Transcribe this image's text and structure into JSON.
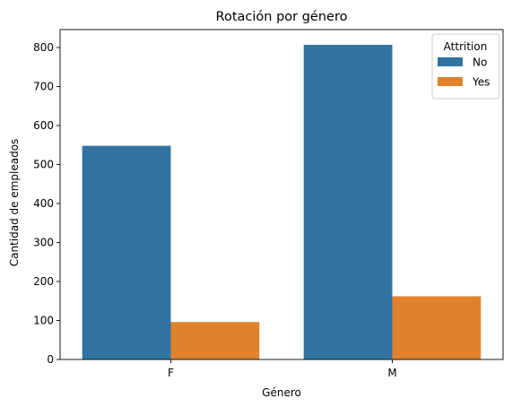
{
  "chart_data": {
    "type": "bar",
    "title": "Rotación por género",
    "xlabel": "Género",
    "ylabel": "Cantidad de empleados",
    "categories": [
      "F",
      "M"
    ],
    "series": [
      {
        "name": "No",
        "values": [
          548,
          807
        ],
        "color": "#3274a1"
      },
      {
        "name": "Yes",
        "values": [
          96,
          162
        ],
        "color": "#e1812c"
      }
    ],
    "ylim": [
      0,
      846
    ],
    "yticks": [
      0,
      100,
      200,
      300,
      400,
      500,
      600,
      700,
      800
    ],
    "grid": false,
    "legend": {
      "title": "Attrition",
      "placement": "top-right"
    }
  }
}
